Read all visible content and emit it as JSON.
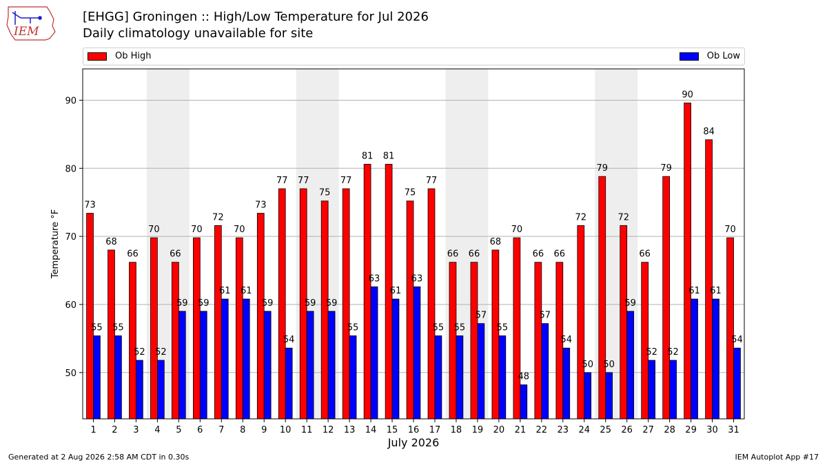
{
  "logo": {
    "text": "IEM"
  },
  "header": {
    "title": "[EHGG] Groningen :: High/Low Temperature for Jul 2026",
    "subtitle": "Daily climatology unavailable for site"
  },
  "legend": {
    "high_label": "Ob High",
    "low_label": "Ob Low"
  },
  "footer": {
    "generated": "Generated at 2 Aug 2026 2:58 AM CDT in 0.30s",
    "app": "IEM Autoplot App #17"
  },
  "colors": {
    "high": "#ff0000",
    "low": "#0000ff",
    "weekend_shade": "#eeeeee",
    "grid": "#b0b0b0"
  },
  "chart_data": {
    "type": "bar",
    "title": "[EHGG] Groningen :: High/Low Temperature for Jul 2026",
    "subtitle": "Daily climatology unavailable for site",
    "xlabel": "July 2026",
    "ylabel": "Temperature °F",
    "categories": [
      "1",
      "2",
      "3",
      "4",
      "5",
      "6",
      "7",
      "8",
      "9",
      "10",
      "11",
      "12",
      "13",
      "14",
      "15",
      "16",
      "17",
      "18",
      "19",
      "20",
      "21",
      "22",
      "23",
      "24",
      "25",
      "26",
      "27",
      "28",
      "29",
      "30",
      "31"
    ],
    "series": [
      {
        "name": "Ob High",
        "values": [
          73.4,
          68,
          66.2,
          69.8,
          66.2,
          69.8,
          71.6,
          69.8,
          73.4,
          77,
          77,
          75.2,
          77,
          80.6,
          80.6,
          75.2,
          77,
          66.2,
          66.2,
          68,
          69.8,
          66.2,
          66.2,
          71.6,
          78.8,
          71.6,
          66.2,
          78.8,
          89.6,
          84.2,
          69.8
        ],
        "labels": [
          "73",
          "68",
          "66",
          "70",
          "66",
          "70",
          "72",
          "70",
          "73",
          "77",
          "77",
          "75",
          "77",
          "81",
          "81",
          "75",
          "77",
          "66",
          "66",
          "68",
          "70",
          "66",
          "66",
          "72",
          "79",
          "72",
          "66",
          "79",
          "90",
          "84",
          "70"
        ]
      },
      {
        "name": "Ob Low",
        "values": [
          55.4,
          55.4,
          51.8,
          51.8,
          59,
          59,
          60.8,
          60.8,
          59,
          53.6,
          59,
          59,
          55.4,
          62.6,
          60.8,
          62.6,
          55.4,
          55.4,
          57.2,
          55.4,
          48.2,
          57.2,
          53.6,
          50,
          50,
          59,
          51.8,
          51.8,
          60.8,
          60.8,
          53.6
        ],
        "labels": [
          "55",
          "55",
          "52",
          "52",
          "59",
          "59",
          "61",
          "61",
          "59",
          "54",
          "59",
          "59",
          "55",
          "63",
          "61",
          "63",
          "55",
          "55",
          "57",
          "55",
          "48",
          "57",
          "54",
          "50",
          "50",
          "59",
          "52",
          "52",
          "61",
          "61",
          "54"
        ]
      }
    ],
    "ylim": [
      43.2,
      94.6
    ],
    "yticks": [
      50,
      60,
      70,
      80,
      90
    ],
    "weekend_days": [
      4,
      5,
      11,
      12,
      18,
      19,
      25,
      26
    ],
    "grid": true,
    "legend": "top"
  }
}
